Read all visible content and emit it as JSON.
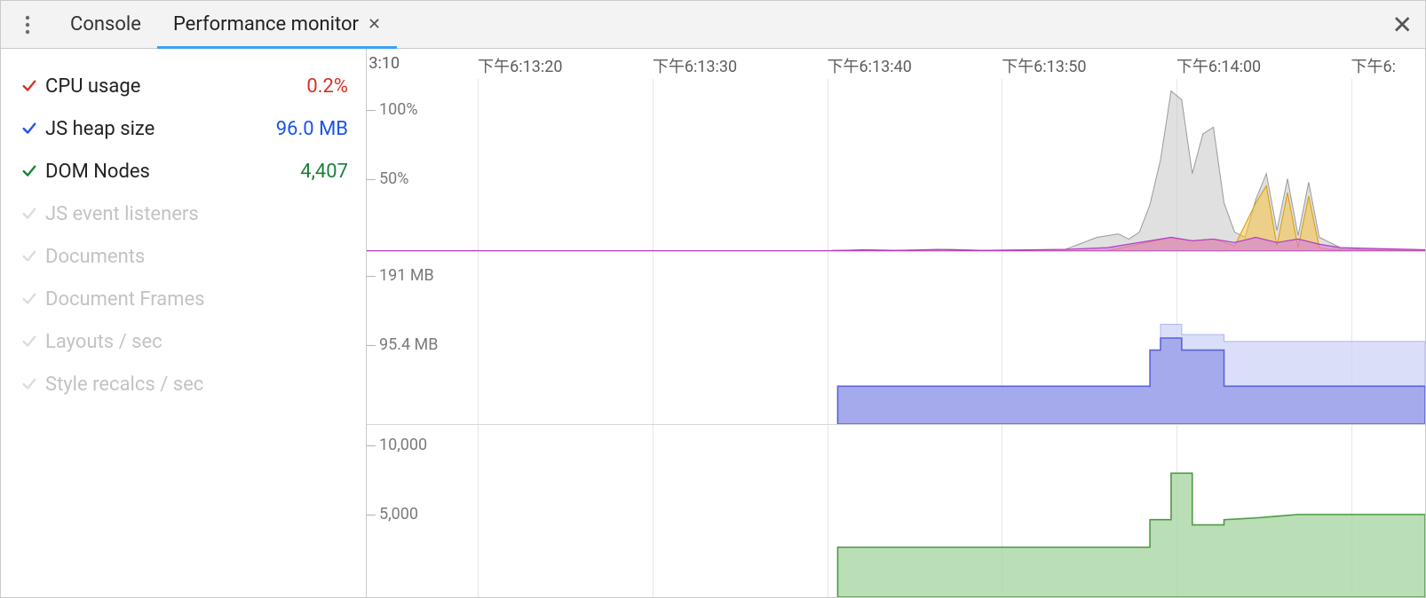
{
  "accent_color": "#3aa1f2",
  "tabs": {
    "console": "Console",
    "perfmon": "Performance monitor"
  },
  "active_tab": "perfmon",
  "metrics": [
    {
      "key": "cpu",
      "label": "CPU usage",
      "value": "0.2%",
      "enabled": true,
      "color": "#d93025"
    },
    {
      "key": "heap",
      "label": "JS heap size",
      "value": "96.0 MB",
      "enabled": true,
      "color": "#1a54e8"
    },
    {
      "key": "dom",
      "label": "DOM Nodes",
      "value": "4,407",
      "enabled": true,
      "color": "#188038"
    },
    {
      "key": "listeners",
      "label": "JS event listeners",
      "value": "",
      "enabled": false,
      "color": "#c3c3c3"
    },
    {
      "key": "docs",
      "label": "Documents",
      "value": "",
      "enabled": false,
      "color": "#c3c3c3"
    },
    {
      "key": "frames",
      "label": "Document Frames",
      "value": "",
      "enabled": false,
      "color": "#c3c3c3"
    },
    {
      "key": "layouts",
      "label": "Layouts / sec",
      "value": "",
      "enabled": false,
      "color": "#c3c3c3"
    },
    {
      "key": "recalcs",
      "label": "Style recalcs / sec",
      "value": "",
      "enabled": false,
      "color": "#c3c3c3"
    }
  ],
  "timeline": {
    "ticks": [
      {
        "x_pct": 0.2,
        "label": "3:10"
      },
      {
        "x_pct": 10.5,
        "label": "下午6:13:20"
      },
      {
        "x_pct": 27.0,
        "label": "下午6:13:30"
      },
      {
        "x_pct": 43.5,
        "label": "下午6:13:40"
      },
      {
        "x_pct": 60.0,
        "label": "下午6:13:50"
      },
      {
        "x_pct": 76.5,
        "label": "下午6:14:00"
      },
      {
        "x_pct": 93.0,
        "label": "下午6:"
      }
    ],
    "grid_x_pct": [
      10.5,
      27.0,
      43.5,
      60.0,
      76.5,
      93.0
    ]
  },
  "chart_cpu": {
    "yticks": [
      {
        "y_pct": 18,
        "label": "100%"
      },
      {
        "y_pct": 58,
        "label": "50%"
      }
    ],
    "bg": "#ffffff",
    "series": [
      {
        "name": "grey",
        "fill": "#c6c6c6",
        "fill_opacity": 0.55,
        "stroke": "#9a9a9a",
        "stroke_width": 1,
        "points": [
          [
            44,
            99.5
          ],
          [
            52,
            99.5
          ],
          [
            55,
            99
          ],
          [
            58,
            99.5
          ],
          [
            62,
            99.5
          ],
          [
            66,
            99
          ],
          [
            69,
            92
          ],
          [
            71,
            90
          ],
          [
            72,
            93
          ],
          [
            73,
            89
          ],
          [
            74,
            73
          ],
          [
            75,
            47
          ],
          [
            76,
            7
          ],
          [
            77,
            12
          ],
          [
            78,
            55
          ],
          [
            79,
            32
          ],
          [
            80,
            28
          ],
          [
            81,
            72
          ],
          [
            82,
            89
          ],
          [
            83,
            92
          ],
          [
            84,
            70
          ],
          [
            85,
            55
          ],
          [
            86,
            88
          ],
          [
            87,
            58
          ],
          [
            88,
            91
          ],
          [
            89,
            60
          ],
          [
            90,
            92
          ],
          [
            91,
            95
          ],
          [
            92,
            98
          ],
          [
            94,
            99
          ],
          [
            100,
            99.5
          ]
        ]
      },
      {
        "name": "yellow",
        "fill": "#f5c341",
        "fill_opacity": 0.55,
        "stroke": "#d99a00",
        "stroke_width": 1,
        "points": [
          [
            44,
            99.8
          ],
          [
            70,
            99.8
          ],
          [
            73,
            96
          ],
          [
            76,
            92
          ],
          [
            78,
            94
          ],
          [
            80,
            93
          ],
          [
            82,
            97
          ],
          [
            84,
            72
          ],
          [
            85,
            62
          ],
          [
            86,
            97
          ],
          [
            87,
            66
          ],
          [
            88,
            98
          ],
          [
            89,
            68
          ],
          [
            90,
            98
          ],
          [
            91,
            99
          ],
          [
            100,
            99.8
          ]
        ]
      },
      {
        "name": "magenta",
        "fill": "#d67adf",
        "fill_opacity": 0.6,
        "stroke": "#b63bc2",
        "stroke_width": 1.2,
        "points": [
          [
            0,
            99.8
          ],
          [
            44,
            99.8
          ],
          [
            47,
            99.2
          ],
          [
            50,
            99.6
          ],
          [
            54,
            99
          ],
          [
            58,
            99.6
          ],
          [
            66,
            99
          ],
          [
            70,
            98
          ],
          [
            72,
            96
          ],
          [
            74,
            94
          ],
          [
            76,
            92
          ],
          [
            78,
            94
          ],
          [
            80,
            93
          ],
          [
            82,
            95
          ],
          [
            84,
            92
          ],
          [
            86,
            95
          ],
          [
            88,
            93
          ],
          [
            90,
            96
          ],
          [
            92,
            98
          ],
          [
            100,
            99.2
          ]
        ]
      }
    ]
  },
  "chart_heap": {
    "yticks": [
      {
        "y_pct": 14,
        "label": "191 MB"
      },
      {
        "y_pct": 54,
        "label": "95.4 MB"
      }
    ],
    "bg": "#ffffff",
    "series": [
      {
        "name": "heap-light",
        "fill": "#cfd3f6",
        "fill_opacity": 0.75,
        "stroke": "#aeb3ef",
        "stroke_width": 1,
        "points": [
          [
            44.5,
            78
          ],
          [
            74,
            78
          ],
          [
            74,
            57
          ],
          [
            75,
            57
          ],
          [
            75,
            42
          ],
          [
            77,
            42
          ],
          [
            77,
            48
          ],
          [
            81,
            48
          ],
          [
            81,
            52
          ],
          [
            100,
            52
          ]
        ]
      },
      {
        "name": "heap-dark",
        "fill": "#9aa1ea",
        "fill_opacity": 0.85,
        "stroke": "#5a64d6",
        "stroke_width": 1.6,
        "points": [
          [
            44.5,
            100
          ],
          [
            44.5,
            78
          ],
          [
            74,
            78
          ],
          [
            74,
            57
          ],
          [
            75,
            57
          ],
          [
            75,
            50
          ],
          [
            77,
            50
          ],
          [
            77,
            57
          ],
          [
            81,
            57
          ],
          [
            81,
            78
          ],
          [
            100,
            78
          ],
          [
            100,
            100
          ]
        ]
      }
    ]
  },
  "chart_dom": {
    "yticks": [
      {
        "y_pct": 12,
        "label": "10,000"
      },
      {
        "y_pct": 52,
        "label": "5,000"
      }
    ],
    "bg": "#ffffff",
    "series": [
      {
        "name": "dom",
        "fill": "#a9d6a4",
        "fill_opacity": 0.8,
        "stroke": "#4f9a45",
        "stroke_width": 1.6,
        "points": [
          [
            44.5,
            100
          ],
          [
            44.5,
            71
          ],
          [
            74,
            71
          ],
          [
            74,
            55
          ],
          [
            76,
            55
          ],
          [
            76,
            28
          ],
          [
            78,
            28
          ],
          [
            78,
            58
          ],
          [
            81,
            58
          ],
          [
            81,
            55
          ],
          [
            84,
            54
          ],
          [
            86,
            53
          ],
          [
            88,
            52
          ],
          [
            100,
            52
          ],
          [
            100,
            100
          ]
        ]
      }
    ]
  }
}
